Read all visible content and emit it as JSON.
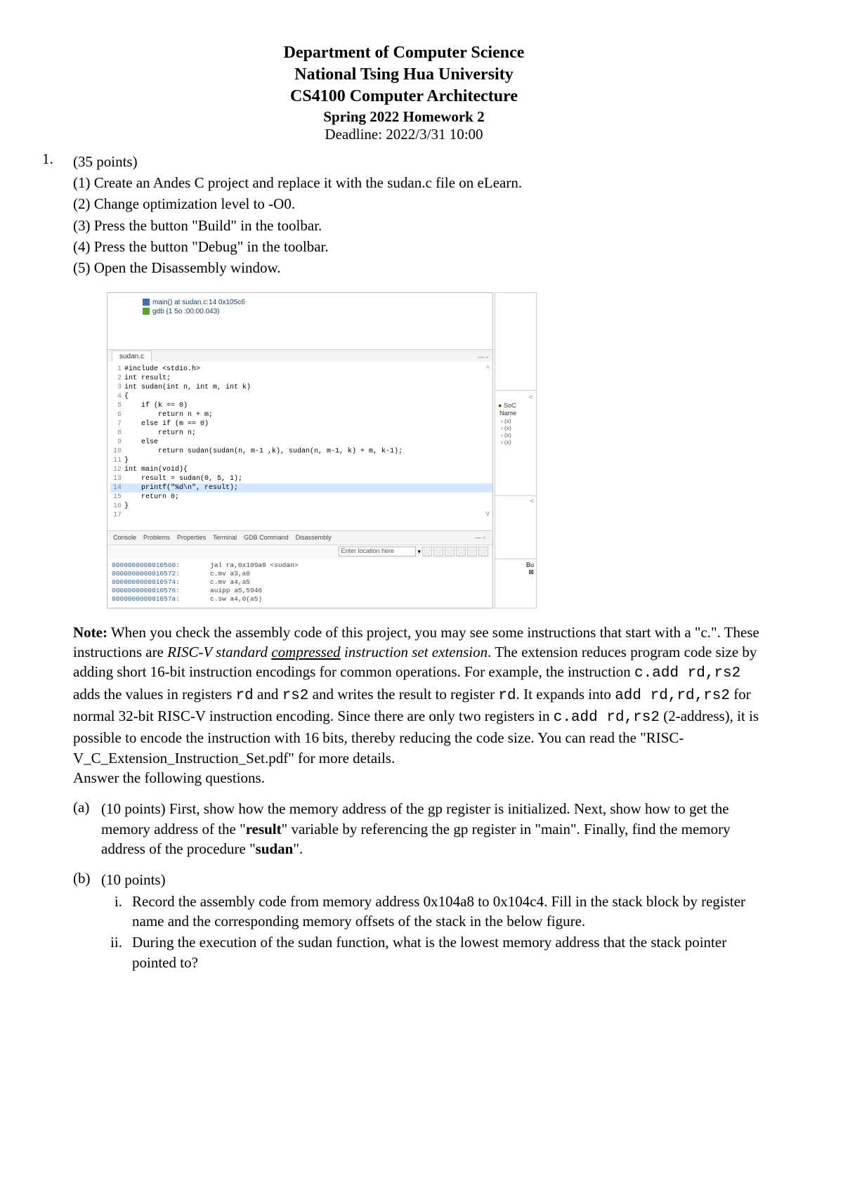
{
  "header": {
    "dept": "Department of Computer Science",
    "univ": "National Tsing Hua University",
    "course": "CS4100 Computer Architecture",
    "hw": "Spring 2022 Homework 2",
    "deadline": "Deadline: 2022/3/31 10:00"
  },
  "q1": {
    "num": "1.",
    "points": "(35 points)",
    "s1": "(1) Create an Andes C project and replace it with the sudan.c file on eLearn.",
    "s2": "(2) Change optimization level to -O0.",
    "s3": "(3) Press the button \"Build\" in the toolbar.",
    "s4": "(4) Press the button \"Debug\" in the toolbar.",
    "s5": "(5) Open the Disassembly window."
  },
  "ide": {
    "top_items": [
      "main() at sudan.c:14 0x105c6",
      "gdb (1 5o :00:00.043)"
    ],
    "tab": "sudan.c",
    "tab_right": "— ▫",
    "code": [
      {
        "n": "1",
        "txt": "#include <stdio.h>",
        "cls": "kw"
      },
      {
        "n": "2",
        "txt": "int result;",
        "cls": "kw"
      },
      {
        "n": "3",
        "txt": "int sudan(int n, int m, int k)",
        "cls": "kw"
      },
      {
        "n": "4",
        "txt": "{",
        "cls": ""
      },
      {
        "n": "5",
        "txt": "    if (k == 0)",
        "cls": "kw"
      },
      {
        "n": "6",
        "txt": "        return n + m;",
        "cls": "kw"
      },
      {
        "n": "7",
        "txt": "    else if (m == 0)",
        "cls": "kw"
      },
      {
        "n": "8",
        "txt": "        return n;",
        "cls": "kw"
      },
      {
        "n": "9",
        "txt": "    else",
        "cls": "kw"
      },
      {
        "n": "10",
        "txt": "        return sudan(sudan(n, m-1 ,k), sudan(n, m-1, k) + m, k-1);",
        "cls": ""
      },
      {
        "n": "11",
        "txt": "}",
        "cls": ""
      },
      {
        "n": "12",
        "txt": "int main(void){",
        "cls": "kw"
      },
      {
        "n": "13",
        "txt": "    result = sudan(0, 5, 1);",
        "cls": ""
      },
      {
        "n": "14",
        "txt": "    printf(\"%d\\n\", result);",
        "cls": "hl"
      },
      {
        "n": "15",
        "txt": "    return 0;",
        "cls": "kw"
      },
      {
        "n": "16",
        "txt": "}",
        "cls": ""
      },
      {
        "n": "17",
        "txt": "",
        "cls": ""
      }
    ],
    "bottom_tabs": [
      "Console",
      "Problems",
      "Properties",
      "Terminal",
      "GDB Command",
      "Disassembly"
    ],
    "toolbar_input": "Enter location here",
    "dis_rows": [
      {
        "addr": "0000000000010560:",
        "inst": "jal ra,0x109a8 <sudan>"
      },
      {
        "addr": "0000000000010572:",
        "inst": "c.mv a3,a0"
      },
      {
        "addr": "0000000000010574:",
        "inst": "c.mv a4,a5"
      },
      {
        "addr": "0000000000010576:",
        "inst": "auipp a5,5946"
      },
      {
        "addr": "000000000001057a:",
        "inst": "c.sw a4,0(a5)"
      }
    ],
    "side_hdr_soc": "SoC",
    "side_hdr_name": "Name",
    "side_tree": [
      "(x)",
      "(x)",
      "(x)",
      "(x)"
    ],
    "side_scroll": "<",
    "side_bl": "Bu",
    "side_bl2": "⊠"
  },
  "note": {
    "label": "Note:",
    "t1": " When you check the assembly code of this project, you may see some instructions that start with a \"c.\". These instructions are ",
    "t2": "RISC-V standard ",
    "t3": "compressed",
    "t4": " instruction set extension",
    "t5": ". The extension reduces program code size by adding short 16-bit instruction encodings for common operations. For example, the instruction ",
    "c1": "c.add rd,rs2",
    "t6": " adds the values in registers ",
    "c2": "rd",
    "t7": " and ",
    "c3": "rs2",
    "t8": " and writes the result to register ",
    "c4": "rd",
    "t9": ". It expands into ",
    "c5": "add rd,rd,rs2",
    "t10": " for normal 32-bit RISC-V instruction encoding. Since there are only two registers in ",
    "c6": "c.add rd,rs2",
    "t11": " (2-address), it is possible to encode the instruction with 16 bits, thereby reducing the code size. You can read the \"RISC-V_C_Extension_Instruction_Set.pdf\" for more details.",
    "t12": "Answer the following questions."
  },
  "qa": {
    "label": "(a)",
    "pts": "(10 points) First, show how the memory address of the gp register is initialized. Next, show how to get the memory address of the \"",
    "bold1": "result",
    "mid": "\" variable by referencing the gp register in \"main\". Finally, find the memory address of the procedure \"",
    "bold2": "sudan",
    "end": "\"."
  },
  "qb": {
    "label": "(b)",
    "pts": "(10 points)",
    "i_num": "i.",
    "i_txt": "Record the assembly code from memory address 0x104a8 to 0x104c4. Fill in the stack block by register name and the corresponding memory offsets of the stack in the below figure.",
    "ii_num": "ii.",
    "ii_txt": "During the execution of the sudan function, what is the lowest memory address that the stack pointer pointed to?"
  }
}
